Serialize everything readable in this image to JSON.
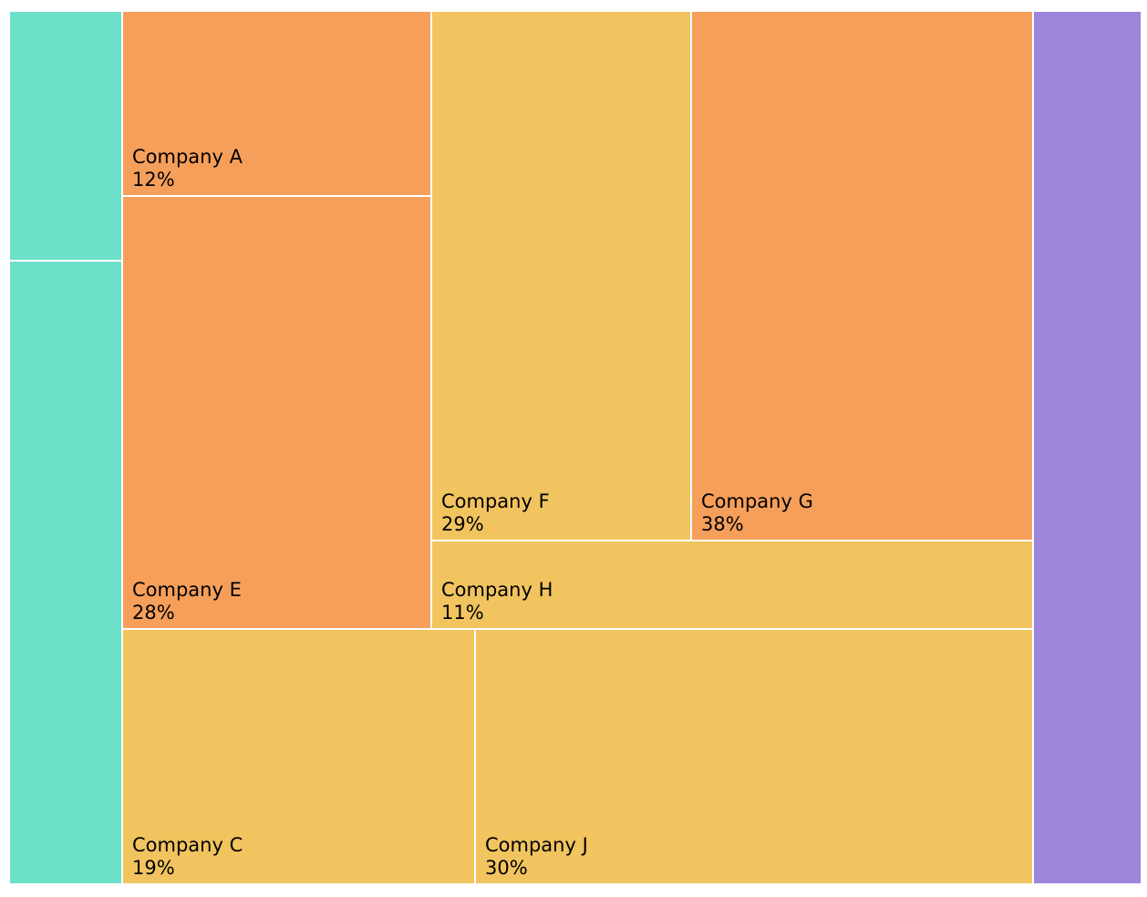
{
  "chart_data": {
    "type": "treemap",
    "colors": {
      "teal": "#6de0c9",
      "orange": "#f59f5b",
      "yellow": "#f1c45f",
      "purple": "#9c85db",
      "border": "#ffffff",
      "text": "#000000"
    },
    "tiles": [
      {
        "id": "teal-top",
        "label": "",
        "value": "",
        "color": "teal"
      },
      {
        "id": "teal-bottom",
        "label": "",
        "value": "",
        "color": "teal"
      },
      {
        "id": "company-a",
        "label": "Company A",
        "value": "12%",
        "color": "orange"
      },
      {
        "id": "company-e",
        "label": "Company E",
        "value": "28%",
        "color": "orange"
      },
      {
        "id": "company-f",
        "label": "Company F",
        "value": "29%",
        "color": "yellow"
      },
      {
        "id": "company-g",
        "label": "Company G",
        "value": "38%",
        "color": "orange"
      },
      {
        "id": "company-h",
        "label": "Company H",
        "value": "11%",
        "color": "yellow"
      },
      {
        "id": "company-c",
        "label": "Company C",
        "value": "19%",
        "color": "yellow"
      },
      {
        "id": "company-j",
        "label": "Company J",
        "value": "30%",
        "color": "yellow"
      },
      {
        "id": "purple-right",
        "label": "",
        "value": "",
        "color": "purple"
      }
    ]
  }
}
